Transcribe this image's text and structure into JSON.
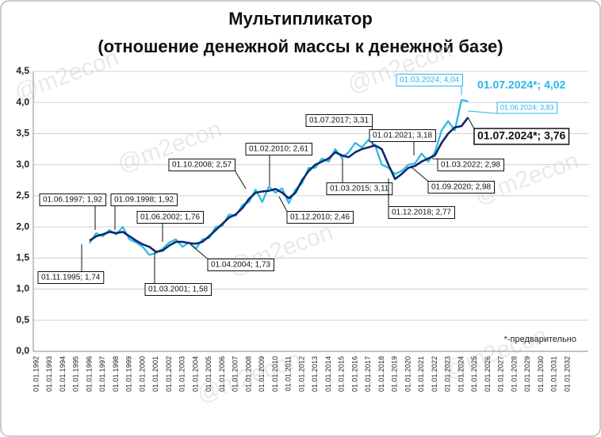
{
  "chart_data": {
    "type": "line",
    "title": "Мультипликатор",
    "subtitle": "(отношение денежной массы к денежной базе)",
    "watermark": "@m2econ",
    "footnote": "*-предварительно",
    "categories": [
      "01.01.1992",
      null,
      "01.01.1993",
      null,
      "01.01.1994",
      null,
      "01.01.1995",
      null,
      "01.01.1996",
      null,
      "01.01.1997",
      null,
      "01.01.1998",
      null,
      "01.01.1999",
      null,
      "01.01.2000",
      null,
      "01.01.2001",
      null,
      "01.01.2002",
      null,
      "01.01.2003",
      null,
      "01.01.2004",
      null,
      "01.01.2005",
      null,
      "01.01.2006",
      null,
      "01.01.2007",
      null,
      "01.01.2008",
      null,
      "01.01.2009",
      null,
      "01.01.2010",
      null,
      "01.01.2011",
      null,
      "01.01.2012",
      null,
      "01.01.2013",
      null,
      "01.01.2014",
      null,
      "01.01.2015",
      null,
      "01.01.2016",
      null,
      "01.01.2017",
      null,
      "01.01.2018",
      null,
      "01.01.2019",
      null,
      "01.01.2020",
      null,
      "01.01.2021",
      null,
      "01.01.2022",
      null,
      "01.01.2023",
      null,
      "01.01.2024",
      null,
      "01.01.2025",
      null,
      "01.01.2026",
      null,
      "01.01.2027",
      null,
      "01.01.2028",
      null,
      "01.01.2029",
      null,
      "01.01.2030",
      null,
      "01.01.2031",
      null,
      "01.01.2032"
    ],
    "series": [
      {
        "color": "#29b6e8",
        "values": [
          null,
          null,
          null,
          null,
          null,
          null,
          null,
          null,
          1.74,
          1.9,
          1.85,
          1.95,
          1.88,
          2.0,
          1.8,
          1.75,
          1.68,
          1.55,
          1.58,
          1.65,
          1.75,
          1.8,
          1.68,
          1.75,
          1.65,
          1.8,
          1.82,
          2.0,
          2.02,
          2.2,
          2.18,
          2.35,
          2.4,
          2.6,
          2.4,
          2.65,
          2.55,
          2.62,
          2.38,
          2.6,
          2.7,
          2.95,
          2.95,
          3.1,
          3.05,
          3.25,
          3.11,
          3.2,
          3.35,
          3.28,
          3.4,
          3.31,
          3.0,
          2.95,
          2.85,
          2.9,
          3.0,
          3.02,
          3.18,
          3.05,
          3.2,
          3.55,
          3.7,
          3.55,
          4.04,
          4.02,
          null,
          null,
          null,
          null,
          null,
          null,
          null,
          null,
          null,
          null,
          null,
          null,
          null,
          null,
          null
        ]
      },
      {
        "color": "#0d2b6b",
        "values": [
          null,
          null,
          null,
          null,
          null,
          null,
          null,
          null,
          1.78,
          1.85,
          1.88,
          1.92,
          1.9,
          1.92,
          1.85,
          1.78,
          1.72,
          1.68,
          1.6,
          1.62,
          1.7,
          1.76,
          1.76,
          1.74,
          1.73,
          1.76,
          1.85,
          1.95,
          2.05,
          2.15,
          2.2,
          2.3,
          2.45,
          2.55,
          2.57,
          2.58,
          2.61,
          2.55,
          2.46,
          2.55,
          2.75,
          2.9,
          3.0,
          3.05,
          3.1,
          3.2,
          3.15,
          3.12,
          3.2,
          3.25,
          3.28,
          3.31,
          3.25,
          3.0,
          2.77,
          2.85,
          2.95,
          2.98,
          3.05,
          3.1,
          3.15,
          3.35,
          3.5,
          3.6,
          3.62,
          3.76,
          null,
          null,
          null,
          null,
          null,
          null,
          null,
          null,
          null,
          null,
          null,
          null,
          null,
          null,
          null
        ]
      }
    ],
    "ylim": [
      0,
      4.5
    ],
    "yticks": [
      {
        "value": 0,
        "label": "0,0"
      },
      {
        "value": 0.5,
        "label": "0,5"
      },
      {
        "value": 1,
        "label": "1,0"
      },
      {
        "value": 1.5,
        "label": "1,5"
      },
      {
        "value": 2,
        "label": "2,0"
      },
      {
        "value": 2.5,
        "label": "2,5"
      },
      {
        "value": 3,
        "label": "3,0"
      },
      {
        "value": 3.5,
        "label": "3,5"
      },
      {
        "value": 4,
        "label": "4,0"
      },
      {
        "value": 4.5,
        "label": "4,5"
      }
    ],
    "grid": true,
    "annotations": [
      "01.11.1995; 1,74",
      "01.06.1997; 1,92",
      "01.09.1998; 1,92",
      "01.06.2002; 1,76",
      "01.03.2001; 1,58",
      "01.04.2004; 1,73",
      "01.10.2008; 2,57",
      "01.02.2010; 2,61",
      "01.12.2010; 2,46",
      "01.07.2017; 3,31",
      "01.03.2015; 3,11",
      "01.01.2021; 3,18",
      "01.12.2018; 2,77",
      "01.03.2022; 2,98",
      "01.09.2020; 2,98",
      "01.03.2024; 4,04",
      "01.06.2024; 3,83",
      "01.07.2024*; 4,02",
      "01.07.2024*; 3,76"
    ]
  }
}
